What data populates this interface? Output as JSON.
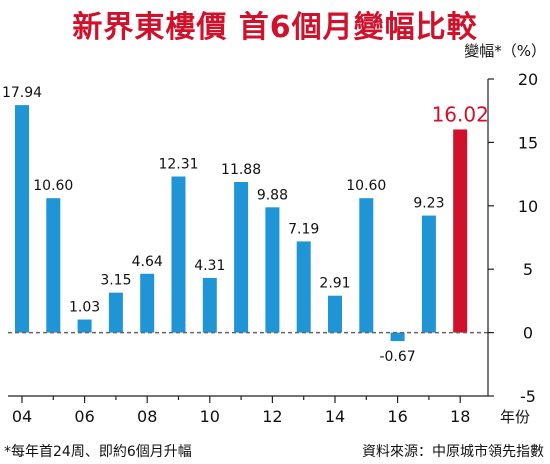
{
  "title": "新界東樓價 首6個月變幅比較",
  "footnote": "*每年首24周、即約6個月升幅",
  "source": "資料來源：中原城市領先指數",
  "colors": {
    "bar": "#1f95d6",
    "highlight": "#d0112b",
    "title": "#d0112b",
    "zero_line": "#666666"
  },
  "chart_data": {
    "type": "bar",
    "title": "新界東樓價 首6個月變幅比較",
    "ylabel": "變幅*（%）",
    "xlabel": "年份",
    "ylim": [
      -5,
      20
    ],
    "yticks": [
      "-5",
      "0",
      "5",
      "10",
      "15",
      "20"
    ],
    "y_axis_position": "right",
    "xtick_labels": [
      "04",
      "06",
      "08",
      "10",
      "12",
      "14",
      "16",
      "18"
    ],
    "categories": [
      "04",
      "05",
      "06",
      "07",
      "08",
      "09",
      "10",
      "11",
      "12",
      "13",
      "14",
      "15",
      "16",
      "17",
      "18"
    ],
    "values": [
      17.94,
      10.6,
      1.03,
      3.15,
      4.64,
      12.31,
      4.31,
      11.88,
      9.88,
      7.19,
      2.91,
      10.6,
      -0.67,
      9.23,
      16.02
    ],
    "labels": [
      "17.94",
      "10.60",
      "1.03",
      "3.15",
      "4.64",
      "12.31",
      "4.31",
      "11.88",
      "9.88",
      "7.19",
      "2.91",
      "10.60",
      "-0.67",
      "9.23",
      "16.02"
    ],
    "highlight_category": "18",
    "zero_line": "dashed",
    "grid": false
  }
}
